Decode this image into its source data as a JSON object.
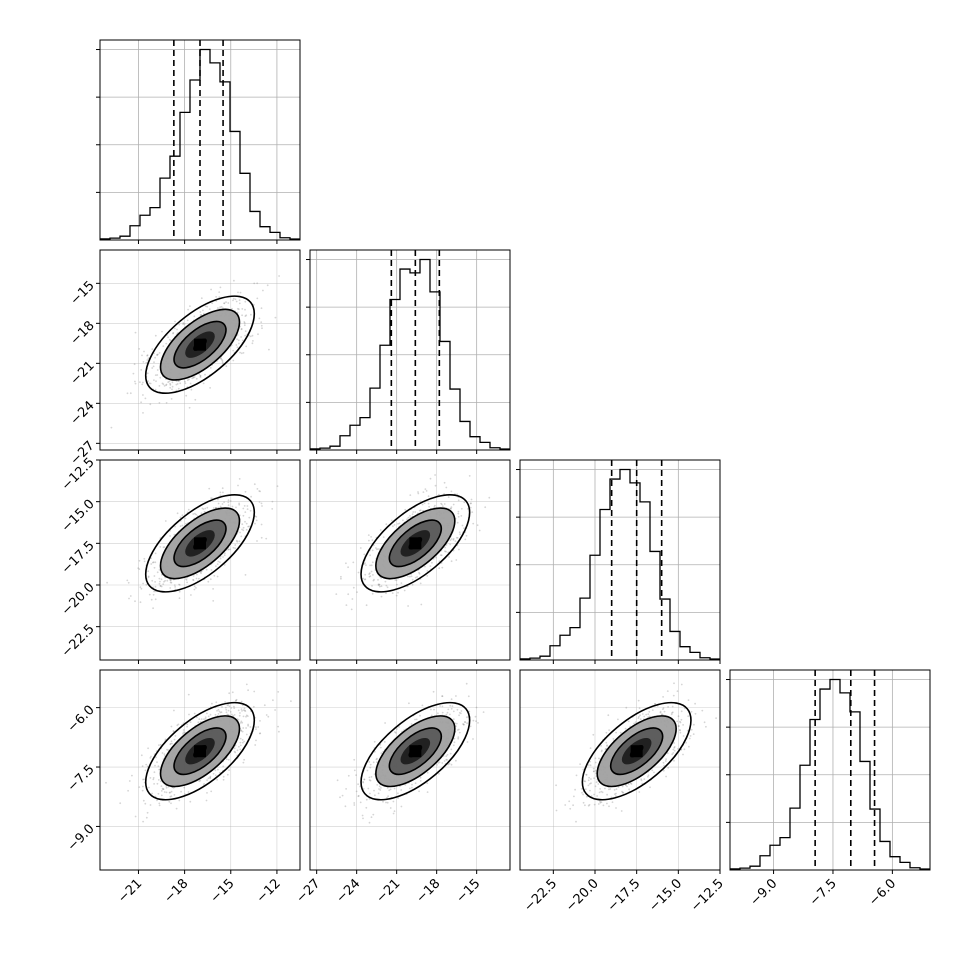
{
  "chart_data": {
    "type": "corner",
    "grid": true,
    "title": "",
    "parameters": [
      {
        "name": "",
        "range": [
          -23.5,
          -10.5
        ],
        "ticks": [
          -21,
          -18,
          -15,
          -12
        ],
        "tick_labels": [
          "−21",
          "−18",
          "−15",
          "−12"
        ],
        "quantiles": [
          -18.7,
          -17.0,
          -15.5
        ],
        "histogram": [
          0.006,
          0.01,
          0.02,
          0.075,
          0.13,
          0.17,
          0.325,
          0.44,
          0.67,
          0.84,
          1.0,
          0.93,
          0.83,
          0.57,
          0.35,
          0.15,
          0.07,
          0.04,
          0.012,
          0.005
        ]
      },
      {
        "name": "",
        "range": [
          -27.5,
          -12.5
        ],
        "ticks": [
          -27,
          -24,
          -21,
          -18,
          -15
        ],
        "tick_labels": [
          "−27",
          "−24",
          "−21",
          "−18",
          "−15"
        ],
        "quantiles": [
          -21.4,
          -19.6,
          -17.8
        ],
        "histogram": [
          0.006,
          0.01,
          0.02,
          0.075,
          0.13,
          0.17,
          0.325,
          0.55,
          0.79,
          0.95,
          0.93,
          1.0,
          0.83,
          0.57,
          0.32,
          0.15,
          0.07,
          0.04,
          0.012,
          0.005
        ]
      },
      {
        "name": "",
        "range": [
          -24.5,
          -12.5
        ],
        "ticks": [
          -22.5,
          -20.0,
          -17.5,
          -15.0,
          -12.5
        ],
        "tick_labels": [
          "−22.5",
          "−20.0",
          "−17.5",
          "−15.0",
          "−12.5"
        ],
        "quantiles": [
          -19.0,
          -17.5,
          -16.0
        ],
        "histogram": [
          0.006,
          0.01,
          0.02,
          0.075,
          0.13,
          0.17,
          0.325,
          0.55,
          0.79,
          0.95,
          1.0,
          0.93,
          0.83,
          0.57,
          0.32,
          0.15,
          0.07,
          0.04,
          0.012,
          0.005
        ]
      },
      {
        "name": "",
        "range": [
          -10.1,
          -5.05
        ],
        "ticks": [
          -9.0,
          -7.5,
          -6.0
        ],
        "tick_labels": [
          "−9.0",
          "−7.5",
          "−6.0"
        ],
        "quantiles": [
          -7.95,
          -7.05,
          -6.45
        ],
        "histogram": [
          0.006,
          0.01,
          0.02,
          0.075,
          0.13,
          0.17,
          0.325,
          0.55,
          0.79,
          0.95,
          1.0,
          0.93,
          0.83,
          0.57,
          0.32,
          0.15,
          0.07,
          0.04,
          0.012,
          0.005
        ]
      }
    ],
    "pair_centers": [
      {
        "x": 0,
        "y": 1,
        "cx": -17.0,
        "cy": -19.6
      },
      {
        "x": 0,
        "y": 2,
        "cx": -17.0,
        "cy": -17.5
      },
      {
        "x": 0,
        "y": 3,
        "cx": -17.0,
        "cy": -7.1
      },
      {
        "x": 1,
        "y": 2,
        "cx": -19.6,
        "cy": -17.5
      },
      {
        "x": 1,
        "y": 3,
        "cx": -19.6,
        "cy": -7.1
      },
      {
        "x": 2,
        "y": 3,
        "cx": -17.5,
        "cy": -7.1
      }
    ],
    "colors": {
      "line": "#000000",
      "grid": "#b0b0b0",
      "scatter": "#888888",
      "density": [
        "#d9d9d9",
        "#a0a0a0",
        "#5a5a5a",
        "#1e1e1e",
        "#000000"
      ]
    }
  }
}
